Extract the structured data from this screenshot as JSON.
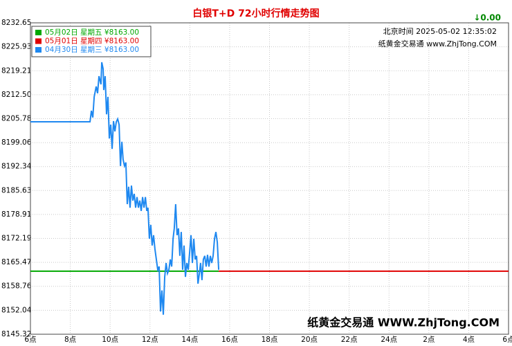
{
  "chart_data": {
    "type": "line",
    "title": "白银T+D 72小时行情走势图",
    "change_label": "↓0.00",
    "time_label": "北京时间 2025-05-02 12:35:02",
    "site_label": "纸黄金交易通 www.ZhjTong.COM",
    "watermark": "纸黄金交易通 WWW.ZhjTong.COM",
    "grid": true,
    "legend": "upper left",
    "xlim": [
      6,
      30
    ],
    "xticks": [
      {
        "value": 6,
        "label": "6点"
      },
      {
        "value": 8,
        "label": "8点"
      },
      {
        "value": 10,
        "label": "10点"
      },
      {
        "value": 12,
        "label": "12点"
      },
      {
        "value": 14,
        "label": "14点"
      },
      {
        "value": 16,
        "label": "16点"
      },
      {
        "value": 18,
        "label": "18点"
      },
      {
        "value": 20,
        "label": "20点"
      },
      {
        "value": 22,
        "label": "22点"
      },
      {
        "value": 24,
        "label": "24点"
      },
      {
        "value": 26,
        "label": "2点"
      },
      {
        "value": 28,
        "label": "4点"
      },
      {
        "value": 30,
        "label": "6点"
      }
    ],
    "ylim": [
      8145.32,
      8232.65
    ],
    "yticks": [
      8145.32,
      8152.04,
      8158.76,
      8165.47,
      8172.19,
      8178.91,
      8185.63,
      8192.34,
      8199.06,
      8205.78,
      {
        "value": 8212.5,
        "label": "8212.50"
      },
      8219.21,
      8225.93,
      8232.65
    ],
    "series": [
      {
        "name": "05月02日 星期五 ¥8163.00",
        "color": "#00a800",
        "x": [
          6,
          15.45
        ],
        "values": [
          8163,
          8163
        ]
      },
      {
        "name": "05月01日 星期四 ¥8163.00",
        "color": "#e00000",
        "x": [
          15.45,
          30
        ],
        "values": [
          8163,
          8163
        ]
      },
      {
        "name": "04月30日 星期三 ¥8163.00",
        "color": "#1e88f0",
        "x": [
          6.0,
          8.99,
          9.06,
          9.13,
          9.2,
          9.3,
          9.37,
          9.44,
          9.54,
          9.58,
          9.65,
          9.68,
          9.75,
          9.82,
          9.89,
          9.96,
          10.03,
          10.1,
          10.17,
          10.24,
          10.31,
          10.38,
          10.45,
          10.52,
          10.59,
          10.65,
          10.72,
          10.79,
          10.86,
          10.93,
          11.0,
          11.07,
          11.14,
          11.21,
          11.28,
          11.35,
          11.42,
          11.49,
          11.56,
          11.63,
          11.7,
          11.77,
          11.84,
          11.9,
          11.97,
          12.04,
          12.11,
          12.18,
          12.25,
          12.32,
          12.39,
          12.46,
          12.53,
          12.6,
          12.67,
          12.74,
          12.81,
          12.88,
          12.95,
          13.02,
          13.09,
          13.16,
          13.22,
          13.29,
          13.36,
          13.43,
          13.5,
          13.57,
          13.64,
          13.71,
          13.78,
          13.85,
          13.92,
          13.99,
          14.06,
          14.13,
          14.2,
          14.27,
          14.34,
          14.41,
          14.48,
          14.54,
          14.61,
          14.68,
          14.75,
          14.82,
          14.89,
          14.96,
          15.03,
          15.1,
          15.17,
          15.24,
          15.31,
          15.38,
          15.45
        ],
        "values": [
          8204.9,
          8204.9,
          8208.0,
          8206.1,
          8211.9,
          8214.8,
          8212.9,
          8217.7,
          8215.4,
          8221.6,
          8219.7,
          8213.8,
          8217.7,
          8207.0,
          8211.9,
          8200.2,
          8204.1,
          8197.3,
          8205.1,
          8202.2,
          8204.9,
          8205.7,
          8204.1,
          8192.5,
          8199.3,
          8194.4,
          8192.5,
          8193.5,
          8181.8,
          8186.7,
          8180.8,
          8187.0,
          8182.8,
          8184.7,
          8180.8,
          8183.8,
          8180.8,
          8182.8,
          8179.9,
          8183.8,
          8180.8,
          8183.8,
          8179.9,
          8180.8,
          8172.1,
          8176.0,
          8170.2,
          8173.1,
          8169.2,
          8166.3,
          8163.4,
          8164.3,
          8151.7,
          8157.6,
          8150.8,
          8161.4,
          8165.3,
          8162.4,
          8163.4,
          8166.3,
          8164.3,
          8172.1,
          8175.0,
          8181.8,
          8173.1,
          8175.0,
          8167.3,
          8174.0,
          8163.4,
          8170.2,
          8161.4,
          8165.3,
          8163.4,
          8168.2,
          8173.1,
          8165.3,
          8172.1,
          8166.3,
          8167.3,
          8159.5,
          8162.4,
          8165.3,
          8160.5,
          8166.3,
          8167.3,
          8164.3,
          8167.6,
          8164.3,
          8167.3,
          8165.3,
          8167.3,
          8172.1,
          8174.0,
          8171.1,
          8163.4
        ]
      }
    ]
  }
}
